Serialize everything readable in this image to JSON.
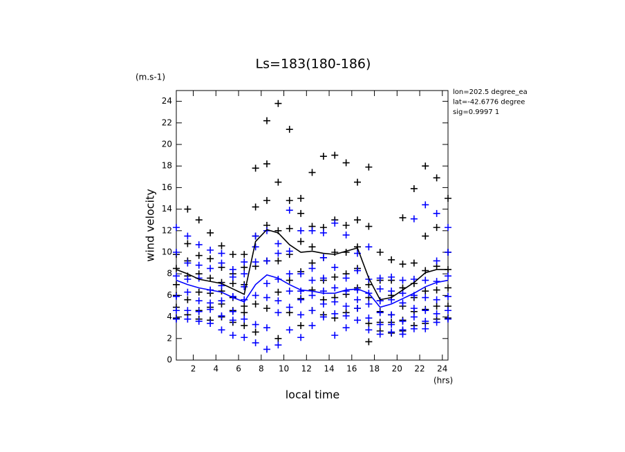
{
  "chart_data": {
    "type": "scatter",
    "title": "Ls=183(180-186)",
    "y_unit": "(m.s-1)",
    "x_unit": "(hrs)",
    "x_label": "local time",
    "y_label": "wind velocity",
    "annotations": [
      "lon=202.5 degree_ea",
      "lat=-42.6776 degree",
      "sig=0.9997 1"
    ],
    "xlim": [
      0.5,
      24.5
    ],
    "ylim": [
      0,
      25
    ],
    "xticks": [
      2,
      4,
      6,
      8,
      10,
      12,
      14,
      16,
      18,
      20,
      22,
      24
    ],
    "yticks": [
      0,
      2,
      4,
      6,
      8,
      10,
      12,
      14,
      16,
      18,
      20,
      22,
      24
    ],
    "x": [
      0.5,
      1.5,
      2.5,
      3.5,
      4.5,
      5.5,
      6.5,
      7.5,
      8.5,
      9.5,
      10.5,
      11.5,
      12.5,
      13.5,
      14.5,
      15.5,
      16.5,
      17.5,
      18.5,
      19.5,
      20.5,
      21.5,
      22.5,
      23.5,
      24.5
    ],
    "series": [
      {
        "type": "scatter",
        "color": "#000000",
        "values": [
          [
            3.9,
            4.9,
            6.0,
            7.0,
            8.5,
            9.8
          ],
          [
            4.2,
            5.6,
            7.8,
            9.2,
            10.8,
            14.0
          ],
          [
            3.8,
            4.6,
            6.3,
            8.0,
            9.7,
            13.0
          ],
          [
            3.7,
            4.9,
            6.2,
            7.6,
            9.4,
            11.8
          ],
          [
            4.0,
            5.2,
            6.4,
            7.2,
            8.6,
            10.6
          ],
          [
            3.5,
            4.6,
            5.8,
            7.1,
            8.0,
            9.8
          ],
          [
            3.2,
            4.4,
            5.0,
            7.0,
            8.6,
            9.8
          ],
          [
            2.6,
            5.2,
            8.7,
            11.5,
            14.2,
            17.8
          ],
          [
            4.8,
            9.2,
            12.5,
            14.8,
            18.2,
            22.2
          ],
          [
            2.0,
            6.3,
            9.2,
            12.0,
            16.5,
            23.8
          ],
          [
            4.4,
            7.4,
            9.8,
            12.2,
            14.8,
            21.4
          ],
          [
            3.2,
            5.7,
            8.2,
            11.0,
            13.6,
            15.0
          ],
          [
            4.6,
            6.5,
            9.0,
            10.5,
            12.4,
            17.4
          ],
          [
            4.2,
            5.6,
            7.4,
            9.5,
            12.3,
            18.9
          ],
          [
            3.9,
            5.8,
            7.7,
            10.0,
            13.0,
            19.0
          ],
          [
            4.4,
            6.1,
            8.0,
            10.0,
            12.5,
            18.3
          ],
          [
            4.8,
            6.7,
            8.5,
            10.5,
            13.0,
            16.5
          ],
          [
            1.7,
            3.4,
            5.8,
            7.0,
            12.4,
            17.9
          ],
          [
            2.7,
            3.5,
            4.5,
            5.5,
            7.4,
            10.0
          ],
          [
            2.5,
            3.5,
            4.2,
            6.0,
            7.4,
            9.3
          ],
          [
            2.7,
            3.7,
            5.0,
            6.7,
            8.9,
            13.2
          ],
          [
            3.2,
            4.5,
            5.8,
            7.1,
            9.0,
            15.9
          ],
          [
            3.4,
            4.7,
            6.4,
            8.3,
            11.5,
            18.0
          ],
          [
            3.8,
            5.0,
            6.5,
            8.7,
            12.3,
            16.9
          ],
          [
            3.9,
            5.0,
            6.7,
            8.4,
            10.0,
            15.0
          ]
        ]
      },
      {
        "type": "scatter",
        "color": "#0000ff",
        "values": [
          [
            3.8,
            4.6,
            5.9,
            7.8,
            10.0,
            12.3
          ],
          [
            3.8,
            4.6,
            6.3,
            7.5,
            9.0,
            11.5
          ],
          [
            3.6,
            4.5,
            5.5,
            7.6,
            8.8,
            10.7
          ],
          [
            3.4,
            4.7,
            5.3,
            6.5,
            8.5,
            10.2
          ],
          [
            2.8,
            4.1,
            5.5,
            6.9,
            9.0,
            9.9
          ],
          [
            2.3,
            3.7,
            4.5,
            5.9,
            7.7,
            8.4
          ],
          [
            2.1,
            3.8,
            5.6,
            6.8,
            8.0,
            9.1
          ],
          [
            1.6,
            3.3,
            6.0,
            9.1,
            10.5,
            11.5
          ],
          [
            1.0,
            3.0,
            5.8,
            7.1,
            9.2,
            12.0
          ],
          [
            1.4,
            4.4,
            5.5,
            7.5,
            9.9,
            10.8
          ],
          [
            2.8,
            4.9,
            6.4,
            8.0,
            10.1,
            13.9
          ],
          [
            2.1,
            4.2,
            5.6,
            6.4,
            8.0,
            12.0
          ],
          [
            3.2,
            4.6,
            6.0,
            7.4,
            8.5,
            12.0
          ],
          [
            4.0,
            5.2,
            6.4,
            7.6,
            9.5,
            11.8
          ],
          [
            2.3,
            4.3,
            5.4,
            6.7,
            8.6,
            12.7
          ],
          [
            3.0,
            4.1,
            5.0,
            6.4,
            7.6,
            11.6
          ],
          [
            3.7,
            4.8,
            5.6,
            6.5,
            8.3,
            9.9
          ],
          [
            2.8,
            3.9,
            5.2,
            6.2,
            7.5,
            10.5
          ],
          [
            2.4,
            3.3,
            4.4,
            5.5,
            6.6,
            7.6
          ],
          [
            2.6,
            3.3,
            4.2,
            5.6,
            6.4,
            7.7
          ],
          [
            2.4,
            2.8,
            3.6,
            5.3,
            6.2,
            7.4
          ],
          [
            2.9,
            4.0,
            4.8,
            6.0,
            7.5,
            13.1
          ],
          [
            2.9,
            3.6,
            4.6,
            5.8,
            7.4,
            14.4
          ],
          [
            3.5,
            4.3,
            5.6,
            7.3,
            9.2,
            13.6
          ],
          [
            3.8,
            4.6,
            5.9,
            7.8,
            10.0,
            12.3
          ]
        ]
      },
      {
        "type": "line",
        "color": "#000000",
        "values": [
          8.4,
          8.0,
          7.5,
          7.3,
          7.1,
          6.6,
          6.1,
          11.0,
          12.1,
          11.8,
          10.7,
          10.0,
          10.1,
          9.9,
          9.8,
          10.1,
          10.4,
          7.6,
          5.6,
          5.8,
          6.5,
          7.2,
          8.1,
          8.4,
          8.4
        ]
      },
      {
        "type": "line",
        "color": "#0000ff",
        "values": [
          7.4,
          7.0,
          6.7,
          6.5,
          6.3,
          5.8,
          5.4,
          7.0,
          7.9,
          7.6,
          7.0,
          6.5,
          6.4,
          6.2,
          6.2,
          6.5,
          6.6,
          6.2,
          4.9,
          5.2,
          5.7,
          6.2,
          6.8,
          7.2,
          7.4
        ]
      }
    ]
  }
}
